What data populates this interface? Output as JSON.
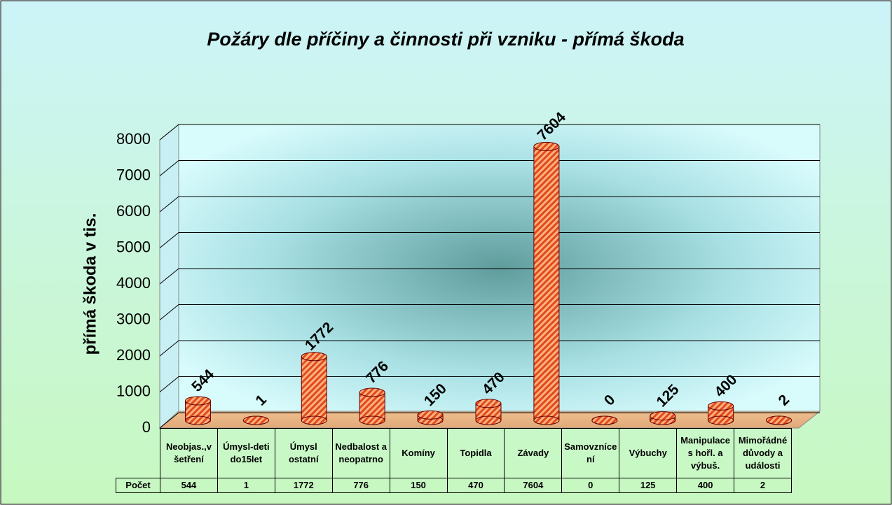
{
  "chart_data": {
    "type": "bar",
    "title": "Požáry dle příčiny a činnosti při vzniku - přímá škoda",
    "y_label": "přímá škoda v tis.",
    "categories": [
      "Neobjas.,v šetření",
      "Úmysl-deti do15let",
      "Úmysl ostatní",
      "Nedbalost a neopatrno",
      "Komíny",
      "Topidla",
      "Závady",
      "Samovznícení",
      "Výbuchy",
      "Manipulace s hořl. a výbuš.",
      "Mimořádné důvody a události"
    ],
    "table_row_label": "Počet",
    "values": [
      544,
      1,
      1772,
      776,
      150,
      470,
      7604,
      0,
      125,
      400,
      2
    ],
    "color": "#e04a1a",
    "ylim": [
      0,
      8000
    ],
    "yticks": [
      0,
      1000,
      2000,
      3000,
      4000,
      5000,
      6000,
      7000,
      8000
    ],
    "grid": true
  }
}
